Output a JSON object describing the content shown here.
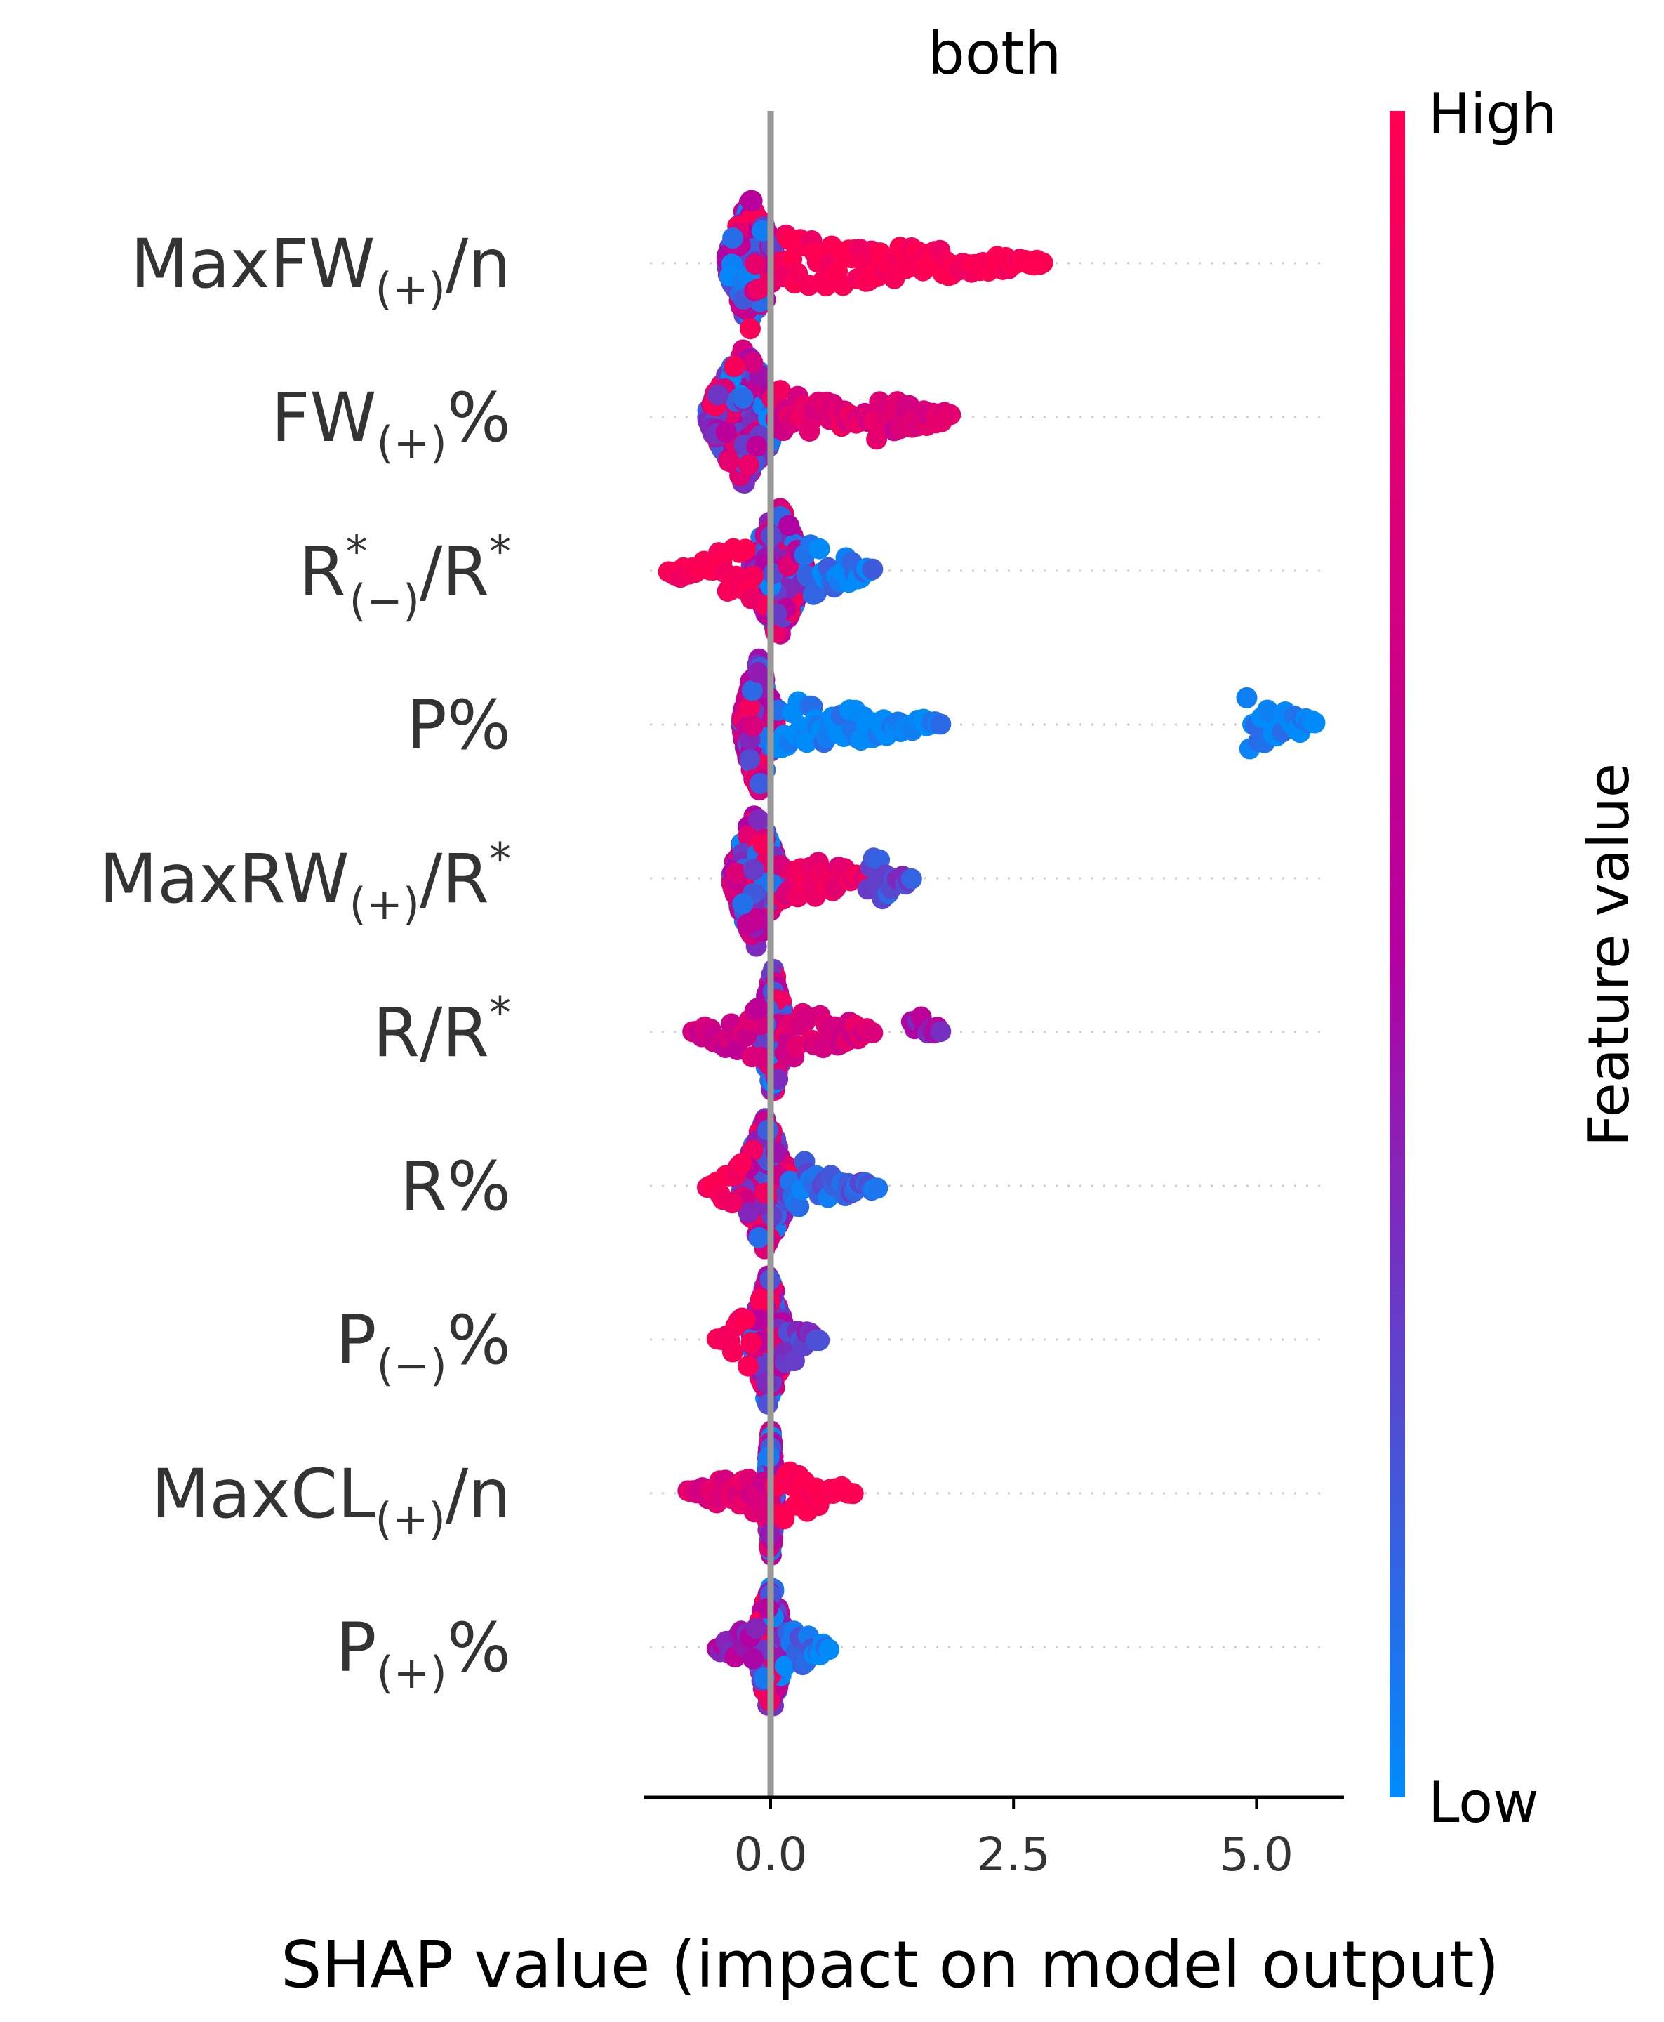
{
  "chart_data": {
    "type": "scatter",
    "subtype": "shap-beeswarm",
    "title": "both",
    "xlabel": "SHAP value (impact on model output)",
    "xlim": [
      -1.3,
      5.9
    ],
    "xticks": [
      {
        "value": 0.0,
        "label": "0.0"
      },
      {
        "value": 2.5,
        "label": "2.5"
      },
      {
        "value": 5.0,
        "label": "5.0"
      }
    ],
    "colorbar": {
      "title": "Feature value",
      "high_label": "High",
      "low_label": "Low",
      "high_color": "#ff0052",
      "mid_color": "#b400a2",
      "low_color": "#008bfb"
    },
    "features": [
      {
        "base": "MaxFW",
        "sub": "(+)",
        "sup": "",
        "tail": "/n",
        "tailsup": "",
        "spread": [
          -0.45,
          0.05
        ],
        "segments": [
          {
            "from": 0.1,
            "to": 2.8,
            "color_value": 1.0
          }
        ]
      },
      {
        "base": "FW",
        "sub": "(+)",
        "sup": "",
        "tail": "%",
        "tailsup": "",
        "spread": [
          -0.65,
          0.1
        ],
        "segments": [
          {
            "from": 0.1,
            "to": 1.0,
            "color_value": 0.8
          },
          {
            "from": 1.0,
            "to": 1.85,
            "color_value": 0.75
          }
        ]
      },
      {
        "base": "R",
        "sub": "(−)",
        "sup": "*",
        "tail": "/R",
        "tailsup": "*",
        "spread": [
          -0.2,
          0.35
        ],
        "segments": [
          {
            "from": -1.05,
            "to": -0.2,
            "color_value": 1.0
          },
          {
            "from": 0.35,
            "to": 1.05,
            "color_value": 0.05
          }
        ]
      },
      {
        "base": "P",
        "sub": "",
        "sup": "",
        "tail": "%",
        "tailsup": "",
        "spread": [
          -0.3,
          0.05
        ],
        "segments": [
          {
            "from": 0.05,
            "to": 1.75,
            "color_value": 0.0
          },
          {
            "from": 4.9,
            "to": 5.6,
            "color_value": 0.0
          }
        ]
      },
      {
        "base": "MaxRW",
        "sub": "(+)",
        "sup": "",
        "tail": "/R",
        "tailsup": "*",
        "spread": [
          -0.4,
          0.1
        ],
        "segments": [
          {
            "from": 0.1,
            "to": 1.0,
            "color_value": 0.85
          },
          {
            "from": 1.0,
            "to": 1.45,
            "color_value": 0.25
          }
        ]
      },
      {
        "base": "R",
        "sub": "",
        "sup": "",
        "tail": "/R",
        "tailsup": "*",
        "spread": [
          -0.1,
          0.15
        ],
        "segments": [
          {
            "from": -0.8,
            "to": -0.1,
            "color_value": 0.7
          },
          {
            "from": 0.15,
            "to": 1.05,
            "color_value": 0.75
          },
          {
            "from": 1.45,
            "to": 1.75,
            "color_value": 0.45
          }
        ]
      },
      {
        "base": "R",
        "sub": "",
        "sup": "",
        "tail": "%",
        "tailsup": "",
        "spread": [
          -0.3,
          0.2
        ],
        "segments": [
          {
            "from": -0.65,
            "to": -0.3,
            "color_value": 1.0
          },
          {
            "from": 0.2,
            "to": 1.1,
            "color_value": 0.15
          }
        ]
      },
      {
        "base": "P",
        "sub": "(−)",
        "sup": "",
        "tail": "%",
        "tailsup": "",
        "spread": [
          -0.2,
          0.15
        ],
        "segments": [
          {
            "from": -0.55,
            "to": -0.2,
            "color_value": 1.0
          },
          {
            "from": 0.15,
            "to": 0.5,
            "color_value": 0.3
          }
        ]
      },
      {
        "base": "MaxCL",
        "sub": "(+)",
        "sup": "",
        "tail": "/n",
        "tailsup": "",
        "spread": [
          -0.05,
          0.05
        ],
        "segments": [
          {
            "from": -0.85,
            "to": -0.05,
            "color_value": 0.75
          },
          {
            "from": 0.05,
            "to": 0.85,
            "color_value": 1.0
          }
        ]
      },
      {
        "base": "P",
        "sub": "(+)",
        "sup": "",
        "tail": "%",
        "tailsup": "",
        "spread": [
          -0.15,
          0.15
        ],
        "segments": [
          {
            "from": -0.55,
            "to": -0.15,
            "color_value": 0.45
          },
          {
            "from": 0.15,
            "to": 0.6,
            "color_value": 0.1
          }
        ]
      }
    ]
  }
}
